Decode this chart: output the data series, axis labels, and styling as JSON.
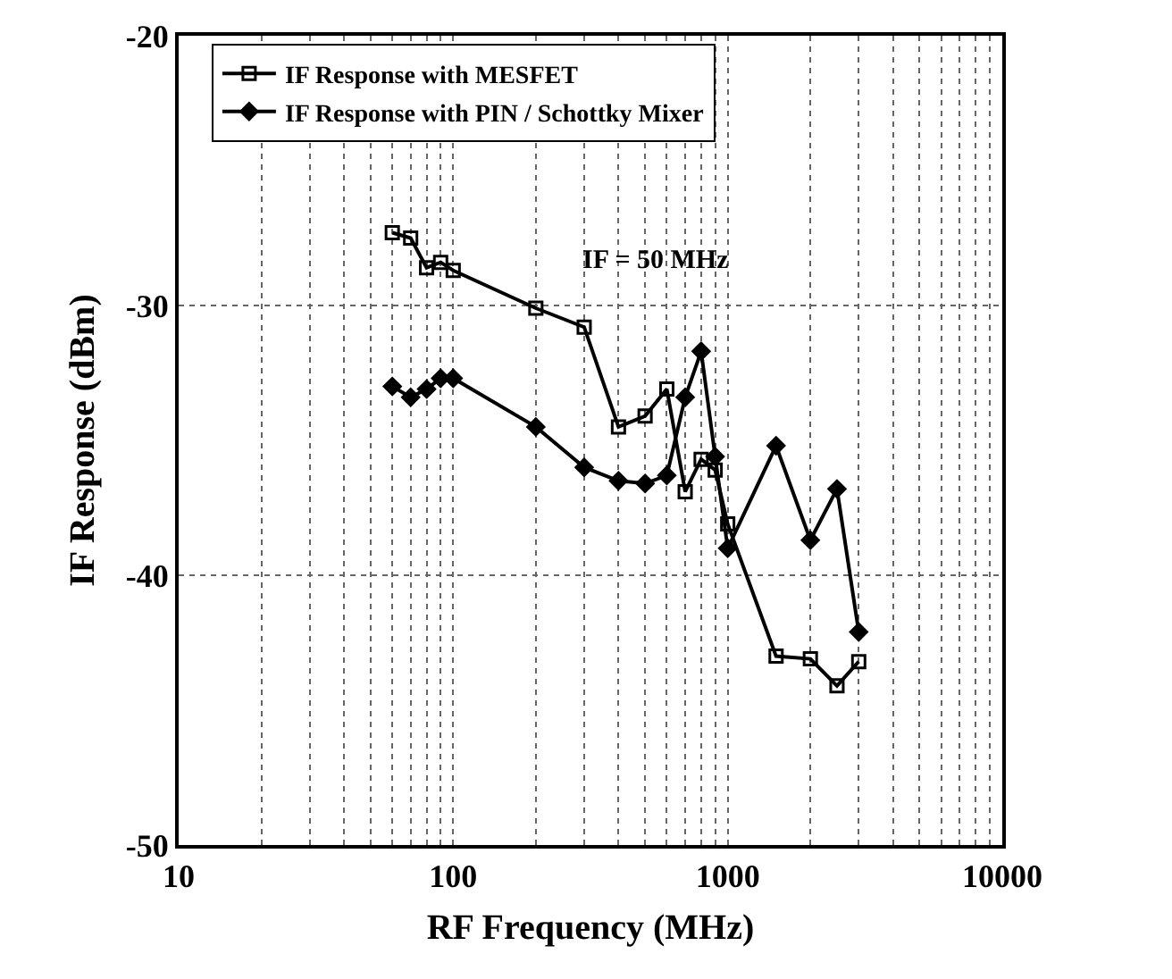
{
  "chart_data": {
    "type": "line",
    "xlabel": "RF Frequency (MHz)",
    "ylabel": "IF Response (dBm)",
    "log": "x",
    "xlim": [
      10,
      10000
    ],
    "xticks": [
      10,
      100,
      1000,
      10000
    ],
    "ylim": [
      -50,
      -20
    ],
    "yticks": [
      -50,
      -40,
      -30,
      -20
    ],
    "grid": true,
    "legend": "top",
    "annotations": [
      "IF = 50 MHz"
    ],
    "x": [
      60,
      70,
      80,
      90,
      100,
      200,
      300,
      400,
      500,
      600,
      700,
      800,
      900,
      1000,
      1500,
      2000,
      2500,
      3000
    ],
    "series": [
      {
        "name": "IF Response with MESFET",
        "color": "#000000",
        "marker": "square",
        "values": [
          -27.3,
          -27.5,
          -28.6,
          -28.4,
          -28.7,
          -30.1,
          -30.8,
          -34.5,
          -34.1,
          -33.1,
          -36.9,
          -35.7,
          -36.1,
          -38.1,
          -43.0,
          -43.1,
          -44.1,
          -43.2
        ]
      },
      {
        "name": "IF Response with PIN / Schottky Mixer",
        "color": "#000000",
        "marker": "diamond",
        "values": [
          -33.0,
          -33.4,
          -33.1,
          -32.7,
          -32.7,
          -34.5,
          -36.0,
          -36.5,
          -36.6,
          -36.3,
          -33.4,
          -31.7,
          -35.6,
          -39.0,
          -35.2,
          -38.7,
          -36.8,
          -42.1
        ]
      }
    ]
  }
}
